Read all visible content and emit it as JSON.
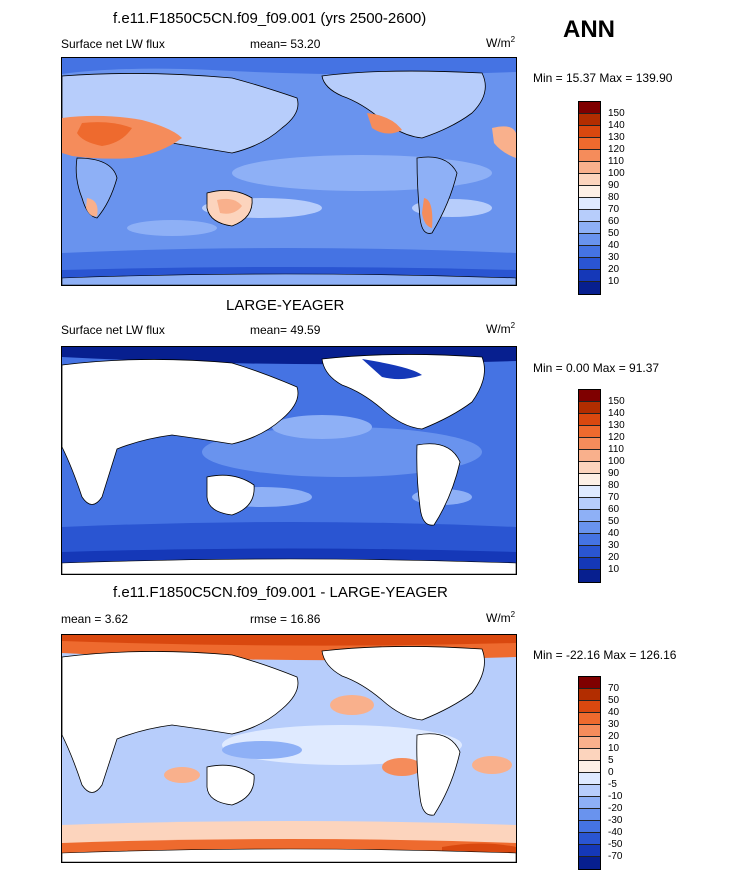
{
  "panels": [
    {
      "title": "f.e11.F1850C5CN.f09_f09.001 (yrs 2500-2600)",
      "left_label": "Surface net LW flux",
      "center_label": "mean=  53.20",
      "units": "W/m",
      "units_exp": "2",
      "minmax": "Min =  15.37 Max = 139.90",
      "colorbar_labels": [
        "150",
        "140",
        "130",
        "120",
        "110",
        "100",
        "90",
        "80",
        "70",
        "60",
        "50",
        "40",
        "30",
        "20",
        "10"
      ],
      "land_masked": false
    },
    {
      "title": "LARGE-YEAGER",
      "left_label": "Surface net LW flux",
      "center_label": "mean=  49.59",
      "units": "W/m",
      "units_exp": "2",
      "minmax": "Min =   0.00 Max =  91.37",
      "colorbar_labels": [
        "150",
        "140",
        "130",
        "120",
        "110",
        "100",
        "90",
        "80",
        "70",
        "60",
        "50",
        "40",
        "30",
        "20",
        "10"
      ],
      "land_masked": true
    },
    {
      "title": "f.e11.F1850C5CN.f09_f09.001 - LARGE-YEAGER",
      "left_label": "mean =   3.62",
      "center_label": "rmse =  16.86",
      "units": "W/m",
      "units_exp": "2",
      "minmax": "Min = -22.16 Max = 126.16",
      "colorbar_labels": [
        "70",
        "50",
        "40",
        "30",
        "20",
        "10",
        "5",
        "0",
        "-5",
        "-10",
        "-20",
        "-30",
        "-40",
        "-50",
        "-70"
      ],
      "land_masked": true
    }
  ],
  "season": "ANN",
  "colors": {
    "colorbar": [
      "#7f0000",
      "#b22d00",
      "#d9480f",
      "#ee6a2e",
      "#f58c5b",
      "#f9b08c",
      "#fcd4bd",
      "#fdf0e6",
      "#dfeaff",
      "#b7cdfb",
      "#8eb0f6",
      "#6993ee",
      "#4573e3",
      "#2a55d2",
      "#1538b8",
      "#071f8f"
    ]
  }
}
